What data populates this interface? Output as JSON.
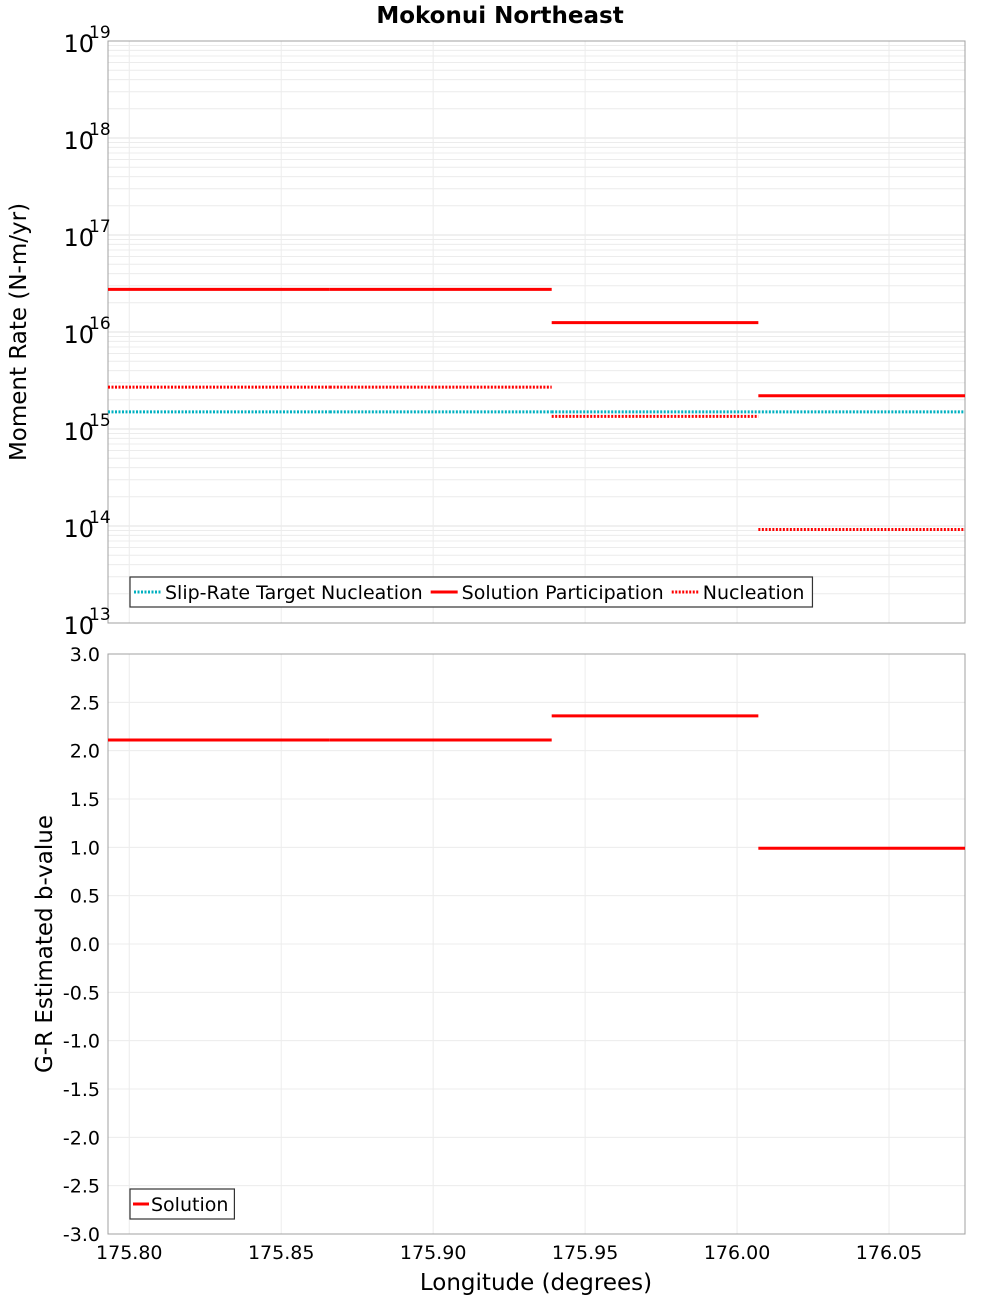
{
  "chart_data": [
    {
      "type": "line",
      "title": "Mokonui Northeast",
      "xlabel": "",
      "ylabel": "Moment Rate (N-m/yr)",
      "yscale": "log",
      "ylim": [
        10000000000000.0,
        1e+19
      ],
      "xlim": [
        175.793,
        176.075
      ],
      "yticks": [
        {
          "base": "10",
          "exp": "13"
        },
        {
          "base": "10",
          "exp": "14"
        },
        {
          "base": "10",
          "exp": "15"
        },
        {
          "base": "10",
          "exp": "16"
        },
        {
          "base": "10",
          "exp": "17"
        },
        {
          "base": "10",
          "exp": "18"
        },
        {
          "base": "10",
          "exp": "19"
        }
      ],
      "grid": true,
      "legend_position": "bottom-left",
      "series": [
        {
          "name": "Slip-Rate Target Nucleation",
          "color": "#00b0c0",
          "style": "dotted",
          "segments": [
            {
              "x": [
                175.793,
                175.866
              ],
              "y": 1500000000000000.0
            },
            {
              "x": [
                175.866,
                175.939
              ],
              "y": 1500000000000000.0
            },
            {
              "x": [
                175.939,
                176.007
              ],
              "y": 1500000000000000.0
            },
            {
              "x": [
                176.007,
                176.075
              ],
              "y": 1500000000000000.0
            }
          ]
        },
        {
          "name": "Solution Participation",
          "color": "#ff0000",
          "style": "solid",
          "segments": [
            {
              "x": [
                175.793,
                175.866
              ],
              "y": 2.75e+16
            },
            {
              "x": [
                175.866,
                175.939
              ],
              "y": 2.75e+16
            },
            {
              "x": [
                175.939,
                176.007
              ],
              "y": 1.25e+16
            },
            {
              "x": [
                176.007,
                176.075
              ],
              "y": 2200000000000000.0
            }
          ]
        },
        {
          "name": "Nucleation",
          "color": "#ff0000",
          "style": "dotted",
          "segments": [
            {
              "x": [
                175.793,
                175.866
              ],
              "y": 2700000000000000.0
            },
            {
              "x": [
                175.866,
                175.939
              ],
              "y": 2700000000000000.0
            },
            {
              "x": [
                175.939,
                176.007
              ],
              "y": 1350000000000000.0
            },
            {
              "x": [
                176.007,
                176.075
              ],
              "y": 92000000000000.0
            }
          ]
        }
      ]
    },
    {
      "type": "line",
      "title": "",
      "xlabel": "Longitude (degrees)",
      "ylabel": "G-R Estimated b-value",
      "yscale": "linear",
      "ylim": [
        -3.0,
        3.0
      ],
      "xlim": [
        175.793,
        176.075
      ],
      "yticks": [
        "-3.0",
        "-2.5",
        "-2.0",
        "-1.5",
        "-1.0",
        "-0.5",
        "0.0",
        "0.5",
        "1.0",
        "1.5",
        "2.0",
        "2.5",
        "3.0"
      ],
      "xticks": [
        "175.80",
        "175.85",
        "175.90",
        "175.95",
        "176.00",
        "176.05"
      ],
      "grid": true,
      "legend_position": "bottom-left",
      "series": [
        {
          "name": "Solution",
          "color": "#ff0000",
          "style": "solid",
          "segments": [
            {
              "x": [
                175.793,
                175.866
              ],
              "y": 2.11
            },
            {
              "x": [
                175.866,
                175.939
              ],
              "y": 2.11
            },
            {
              "x": [
                175.939,
                176.007
              ],
              "y": 2.36
            },
            {
              "x": [
                176.007,
                176.075
              ],
              "y": 0.99
            }
          ]
        }
      ]
    }
  ]
}
